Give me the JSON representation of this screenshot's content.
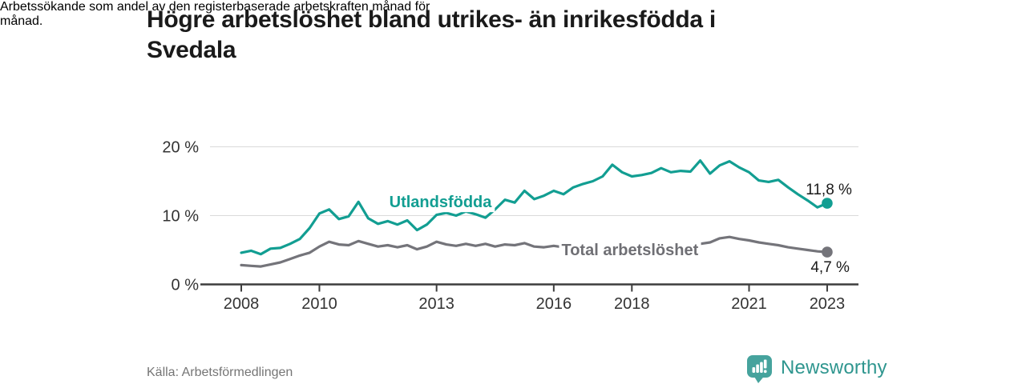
{
  "chart_data": {
    "type": "line",
    "title_lines": [
      "Högre arbetslöshet bland utrikes- än inrikesfödda i",
      "Svedala"
    ],
    "subtitle_lines": [
      "Arbetssökande som andel av den registerbaserade arbetskraften månad för",
      "månad."
    ],
    "source": "Källa: Arbetsförmedlingen",
    "x_start": 2008,
    "x_step": 0.25,
    "x_end": 2023,
    "ylim": [
      0,
      20
    ],
    "grid": true,
    "y_ticks": [
      {
        "value": 0,
        "label": "0 %"
      },
      {
        "value": 10,
        "label": "10 %"
      },
      {
        "value": 20,
        "label": "20 %"
      }
    ],
    "x_ticks": [
      {
        "value": 2008,
        "label": "2008"
      },
      {
        "value": 2010,
        "label": "2010"
      },
      {
        "value": 2013,
        "label": "2013"
      },
      {
        "value": 2016,
        "label": "2016"
      },
      {
        "value": 2018,
        "label": "2018"
      },
      {
        "value": 2021,
        "label": "2021"
      },
      {
        "value": 2023,
        "label": "2023"
      }
    ],
    "series": [
      {
        "name": "Utlandsfödda",
        "color": "#129E92",
        "label_pos": {
          "x": 2013.1,
          "y": 11.2
        },
        "end_label": "11,8 %",
        "end_value": 11.8,
        "end_label_side": "above",
        "values": [
          4.6,
          4.9,
          4.4,
          5.2,
          5.3,
          5.9,
          6.6,
          8.2,
          10.3,
          10.9,
          9.5,
          9.9,
          12.0,
          9.6,
          8.8,
          9.2,
          8.7,
          9.3,
          7.9,
          8.7,
          10.1,
          10.4,
          10.0,
          10.6,
          10.2,
          9.7,
          10.9,
          12.3,
          11.9,
          13.6,
          12.4,
          12.9,
          13.6,
          13.1,
          14.1,
          14.6,
          15.0,
          15.7,
          17.4,
          16.3,
          15.7,
          15.9,
          16.2,
          16.9,
          16.3,
          16.5,
          16.4,
          18.0,
          16.1,
          17.3,
          17.9,
          17.0,
          16.3,
          15.1,
          14.9,
          15.2,
          14.1,
          13.1,
          12.2,
          11.2,
          11.8
        ]
      },
      {
        "name": "Total arbetslöshet",
        "color": "#74747A",
        "label_color": "#6F6F74",
        "label_pos": {
          "x": 2017.95,
          "y": 4.25
        },
        "end_label": "4,7 %",
        "end_value": 4.7,
        "end_label_side": "below",
        "values": [
          2.8,
          2.7,
          2.6,
          2.9,
          3.2,
          3.7,
          4.2,
          4.6,
          5.5,
          6.2,
          5.8,
          5.7,
          6.3,
          5.9,
          5.5,
          5.7,
          5.4,
          5.7,
          5.1,
          5.5,
          6.2,
          5.8,
          5.6,
          5.9,
          5.6,
          5.9,
          5.5,
          5.8,
          5.7,
          6.0,
          5.5,
          5.4,
          5.6,
          5.4,
          5.3,
          5.5,
          5.4,
          5.6,
          5.3,
          5.5,
          5.3,
          5.5,
          5.4,
          5.6,
          5.5,
          5.7,
          5.6,
          5.9,
          6.1,
          6.7,
          6.9,
          6.6,
          6.4,
          6.1,
          5.9,
          5.7,
          5.4,
          5.2,
          5.0,
          4.8,
          4.7
        ]
      }
    ],
    "colors": {
      "axis": "#3D3D3D",
      "grid": "#DADADA",
      "tick_text": "#333333",
      "end_label_text": "#1A1A1A"
    }
  },
  "brand": {
    "name": "Newsworthy",
    "color": "#2F968F",
    "logo_color": "#46A39D"
  }
}
